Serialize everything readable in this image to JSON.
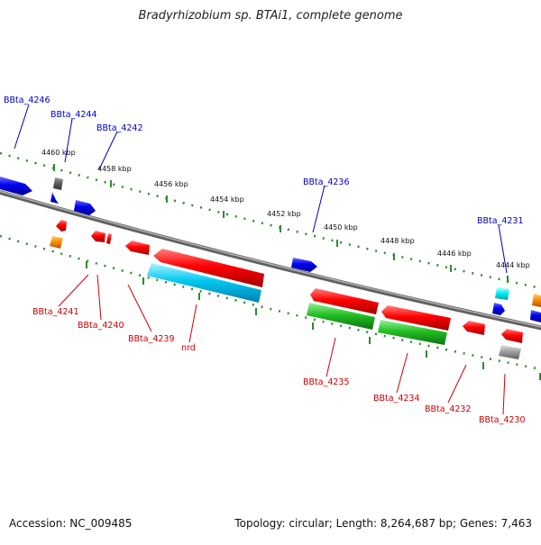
{
  "title": "Bradyrhizobium sp. BTAi1, complete genome",
  "footer": {
    "accession": "Accession: NC_009485",
    "summary": "Topology: circular; Length: 8,264,687 bp; Genes: 7,463"
  },
  "scale_labels": [
    "4460 kbp",
    "4458 kbp",
    "4456 kbp",
    "4454 kbp",
    "4452 kbp",
    "4450 kbp",
    "4448 kbp",
    "4446 kbp",
    "4444 kbp"
  ],
  "top_genes": [
    "BBta_4246",
    "BBta_4244",
    "BBta_4242",
    "BBta_4236",
    "BBta_4231"
  ],
  "bottom_genes": [
    "BBta_4241",
    "BBta_4240",
    "BBta_4239",
    "nrd",
    "BBta_4235",
    "BBta_4234",
    "BBta_4232",
    "BBta_4230"
  ],
  "colors": {
    "backbone": "#808080",
    "scale_ticks": "#2e8b2e",
    "top_label": "#0000c0",
    "bottom_label": "#cc0000",
    "gene_red": "#e00000",
    "gene_blue": "#0000dd",
    "gene_cyan": "#00aadd",
    "gene_green": "#22b022",
    "gene_orange": "#ff8800",
    "gene_gray": "#888888"
  }
}
